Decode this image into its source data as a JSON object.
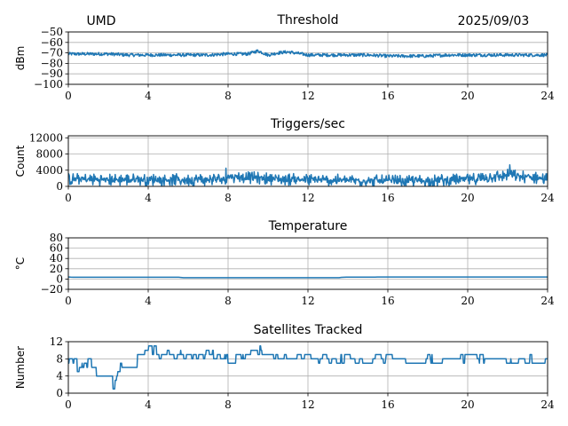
{
  "header": {
    "station": "UMD",
    "date": "2025/09/03"
  },
  "colors": {
    "series": "#1f77b4",
    "grid": "#b0b0b0",
    "axis": "#000000"
  },
  "chart_data": [
    {
      "type": "line",
      "title": "Threshold",
      "ylabel": "dBm",
      "xlim": [
        0,
        24
      ],
      "ylim": [
        -100,
        -50
      ],
      "xticks": [
        "0",
        "4",
        "8",
        "12",
        "16",
        "20",
        "24"
      ],
      "yticks": [
        "−50",
        "−60",
        "−70",
        "−80",
        "−90",
        "−100"
      ],
      "ytick_values": [
        -50,
        -60,
        -70,
        -80,
        -90,
        -100
      ],
      "grid": true,
      "series": [
        {
          "x": [
            0,
            1,
            2,
            3,
            4,
            5,
            6,
            7,
            8,
            9,
            9.5,
            10,
            10.5,
            11,
            12,
            13,
            14,
            15,
            16,
            17,
            18,
            19,
            20,
            21,
            22,
            23,
            24
          ],
          "values": [
            -71,
            -71,
            -71,
            -72,
            -72,
            -72,
            -72,
            -72,
            -71,
            -71,
            -68,
            -72,
            -70,
            -69,
            -72,
            -72,
            -72,
            -72,
            -73,
            -73,
            -73,
            -72,
            -72,
            -72,
            -72,
            -72,
            -72
          ],
          "noise": 1.5
        }
      ]
    },
    {
      "type": "line",
      "title": "Triggers/sec",
      "ylabel": "Count",
      "xlim": [
        0,
        24
      ],
      "ylim": [
        0,
        12500
      ],
      "xticks": [
        "0",
        "4",
        "8",
        "12",
        "16",
        "20",
        "24"
      ],
      "yticks": [
        "0",
        "4000",
        "8000",
        "12000"
      ],
      "ytick_values": [
        0,
        4000,
        8000,
        12000
      ],
      "grid": true,
      "series": [
        {
          "x": [
            0,
            2,
            4,
            6,
            7.8,
            8,
            10,
            12,
            14,
            16,
            18,
            20,
            21,
            22,
            22.5,
            23,
            24
          ],
          "values": [
            1800,
            1600,
            1700,
            1600,
            1800,
            2500,
            1900,
            1600,
            1500,
            1300,
            1400,
            1700,
            2200,
            2800,
            2500,
            2300,
            1800
          ],
          "noise": 1500,
          "spikes": [
            [
              7.9,
              4500
            ],
            [
              22.1,
              5300
            ],
            [
              10.1,
              2900
            ],
            [
              20.0,
              3000
            ]
          ]
        }
      ]
    },
    {
      "type": "line",
      "title": "Temperature",
      "ylabel": "°C",
      "xlim": [
        0,
        24
      ],
      "ylim": [
        -20,
        80
      ],
      "xticks": [
        "0",
        "4",
        "8",
        "12",
        "16",
        "20",
        "24"
      ],
      "yticks": [
        "−20",
        "0",
        "20",
        "40",
        "60",
        "80"
      ],
      "ytick_values": [
        -20,
        0,
        20,
        40,
        60,
        80
      ],
      "grid": true,
      "series": [
        {
          "x": [
            0,
            0.2,
            5.6,
            5.7,
            13.6,
            13.7,
            16,
            24
          ],
          "values": [
            4,
            3.5,
            3.5,
            2.5,
            2.5,
            3.5,
            4,
            4
          ],
          "noise": 0
        }
      ]
    },
    {
      "type": "line",
      "title": "Satellites Tracked",
      "ylabel": "Number",
      "xlim": [
        0,
        24
      ],
      "ylim": [
        0,
        12
      ],
      "xticks": [
        "0",
        "4",
        "8",
        "12",
        "16",
        "20",
        "24"
      ],
      "yticks": [
        "0",
        "4",
        "8",
        "12"
      ],
      "ytick_values": [
        0,
        4,
        8,
        12
      ],
      "grid": true,
      "series": [
        {
          "x": [
            0,
            0.5,
            1,
            1.5,
            2,
            2.2,
            2.6,
            3,
            3.5,
            4,
            5,
            6,
            7,
            7.9,
            8,
            8.5,
            9,
            9.5,
            10,
            11,
            12,
            13,
            14,
            15,
            16,
            17,
            17.5,
            18,
            19,
            20,
            21,
            22,
            23,
            23.5,
            24
          ],
          "values": [
            8,
            6,
            7,
            4,
            5,
            1,
            6,
            7,
            9,
            10,
            9,
            9,
            9,
            8,
            7,
            8,
            9,
            10,
            8,
            9,
            8,
            8,
            8,
            8,
            8,
            7,
            6,
            8,
            8,
            8,
            8,
            8,
            8,
            7,
            8
          ],
          "noise": 1,
          "integer": true
        }
      ]
    }
  ]
}
